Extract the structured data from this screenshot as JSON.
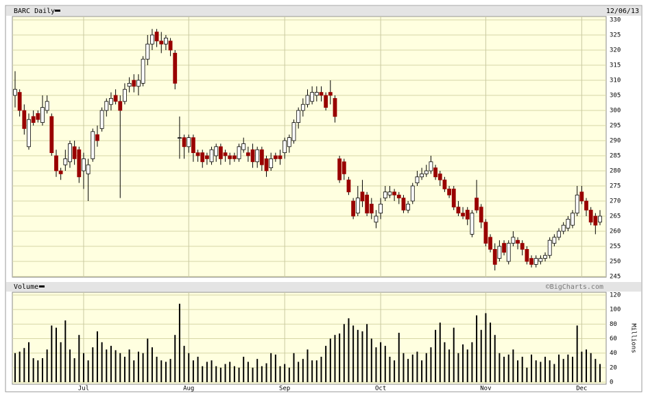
{
  "chart_data": [
    {
      "type": "candlestick",
      "title": "BARC Daily",
      "date": "12/06/13",
      "ylim": [
        245,
        330
      ],
      "yticks": [
        245,
        250,
        255,
        260,
        265,
        270,
        275,
        280,
        285,
        290,
        295,
        300,
        305,
        310,
        315,
        320,
        325,
        330
      ],
      "grid": true,
      "up_color": "#ffffff",
      "down_color": "#990000",
      "open": [
        305,
        306,
        300,
        288,
        298,
        299,
        296,
        300,
        298,
        285,
        280,
        282,
        283,
        288,
        287,
        280,
        279,
        284,
        292,
        294,
        300,
        302,
        305,
        303,
        303,
        308,
        310,
        308,
        309,
        317,
        322,
        326,
        323,
        322,
        323,
        319,
        291,
        291,
        288,
        291,
        286,
        286,
        285,
        283,
        285,
        288,
        286,
        285,
        285,
        284,
        287,
        286,
        287,
        283,
        287,
        284,
        281,
        285,
        285,
        286,
        288,
        290,
        296,
        300,
        302,
        303,
        305,
        306,
        305,
        306,
        304,
        284,
        283,
        277,
        270,
        266,
        273,
        272,
        269,
        263,
        266,
        271,
        272,
        273,
        272,
        271,
        267,
        270,
        276,
        278,
        279,
        280,
        281,
        279,
        277,
        274,
        274,
        268,
        266,
        267,
        259,
        271,
        268,
        263,
        258,
        254,
        251,
        256,
        250,
        256,
        257,
        256,
        254,
        251,
        249,
        250,
        251,
        252,
        256,
        258,
        260,
        261,
        262,
        266,
        273,
        270,
        267,
        265,
        263
      ],
      "high": [
        313,
        307,
        302,
        299,
        300,
        300,
        305,
        305,
        299,
        287,
        281,
        287,
        290,
        290,
        288,
        286,
        284,
        294,
        295,
        301,
        304,
        306,
        307,
        305,
        309,
        311,
        312,
        312,
        318,
        325,
        327,
        327,
        326,
        325,
        324,
        320,
        298,
        292,
        292,
        292,
        287,
        287,
        286,
        288,
        289,
        289,
        287,
        286,
        286,
        289,
        291,
        288,
        289,
        288,
        288,
        285,
        286,
        286,
        287,
        291,
        292,
        297,
        301,
        304,
        307,
        308,
        308,
        308,
        306,
        310,
        305,
        285,
        284,
        278,
        271,
        275,
        277,
        273,
        271,
        267,
        271,
        275,
        275,
        274,
        273,
        272,
        270,
        276,
        280,
        281,
        282,
        285,
        282,
        280,
        278,
        275,
        275,
        270,
        268,
        268,
        267,
        277,
        269,
        264,
        259,
        256,
        257,
        257,
        257,
        260,
        258,
        257,
        255,
        252,
        252,
        252,
        253,
        258,
        259,
        261,
        263,
        265,
        267,
        275,
        275,
        271,
        268,
        266,
        267
      ],
      "low": [
        301,
        298,
        292,
        287,
        295,
        296,
        295,
        299,
        285,
        278,
        277,
        280,
        281,
        282,
        276,
        274,
        270,
        283,
        288,
        293,
        298,
        300,
        302,
        271,
        302,
        306,
        306,
        305,
        308,
        315,
        320,
        321,
        319,
        320,
        318,
        307,
        284,
        284,
        286,
        283,
        283,
        281,
        282,
        282,
        283,
        282,
        283,
        282,
        283,
        283,
        286,
        283,
        281,
        281,
        280,
        278,
        280,
        283,
        282,
        284,
        286,
        289,
        294,
        298,
        301,
        302,
        303,
        303,
        300,
        302,
        296,
        276,
        277,
        272,
        264,
        265,
        268,
        265,
        264,
        261,
        264,
        270,
        271,
        270,
        269,
        266,
        266,
        269,
        275,
        277,
        278,
        279,
        277,
        275,
        273,
        271,
        267,
        265,
        264,
        262,
        258,
        266,
        261,
        255,
        253,
        247,
        250,
        252,
        249,
        255,
        254,
        252,
        249,
        248,
        248,
        249,
        250,
        251,
        255,
        257,
        259,
        260,
        261,
        265,
        269,
        265,
        262,
        259,
        262
      ],
      "close": [
        307,
        300,
        294,
        297,
        296,
        297,
        301,
        303,
        286,
        280,
        279,
        284,
        289,
        284,
        278,
        284,
        282,
        293,
        290,
        300,
        303,
        304,
        303,
        300,
        307,
        309,
        308,
        310,
        317,
        322,
        325,
        323,
        322,
        324,
        320,
        309,
        291,
        288,
        291,
        286,
        285,
        283,
        284,
        287,
        288,
        284,
        285,
        284,
        284,
        288,
        289,
        285,
        283,
        287,
        282,
        280,
        284,
        284,
        284,
        290,
        291,
        296,
        300,
        302,
        305,
        306,
        306,
        305,
        301,
        305,
        298,
        277,
        279,
        273,
        265,
        271,
        270,
        266,
        266,
        265,
        269,
        273,
        273,
        272,
        271,
        267,
        269,
        275,
        278,
        279,
        280,
        283,
        278,
        277,
        274,
        272,
        268,
        266,
        265,
        264,
        266,
        267,
        263,
        256,
        254,
        249,
        255,
        253,
        256,
        258,
        256,
        254,
        250,
        249,
        251,
        251,
        252,
        257,
        258,
        260,
        262,
        264,
        266,
        272,
        270,
        267,
        263,
        262,
        265
      ]
    },
    {
      "type": "bar",
      "title": "Volume",
      "y_label": "Millions",
      "source": "©BigCharts.com",
      "color": "#000000",
      "ylim": [
        0,
        120
      ],
      "yticks": [
        0,
        20,
        40,
        60,
        80,
        100,
        120
      ],
      "grid": true,
      "categories": [
        null,
        null,
        null,
        null,
        null,
        null,
        null,
        null,
        null,
        null,
        null,
        null,
        null,
        null,
        null,
        "Jul",
        null,
        null,
        null,
        null,
        null,
        null,
        null,
        null,
        null,
        null,
        null,
        null,
        null,
        null,
        null,
        null,
        null,
        null,
        null,
        null,
        null,
        null,
        "Aug",
        null,
        null,
        null,
        null,
        null,
        null,
        null,
        null,
        null,
        null,
        null,
        null,
        null,
        null,
        null,
        null,
        null,
        null,
        null,
        null,
        "Sep",
        null,
        null,
        null,
        null,
        null,
        null,
        null,
        null,
        null,
        null,
        null,
        null,
        null,
        null,
        null,
        null,
        null,
        null,
        null,
        null,
        "Oct",
        null,
        null,
        null,
        null,
        null,
        null,
        null,
        null,
        null,
        null,
        null,
        null,
        null,
        null,
        null,
        null,
        null,
        null,
        null,
        null,
        null,
        null,
        "Nov",
        null,
        null,
        null,
        null,
        null,
        null,
        null,
        null,
        null,
        null,
        null,
        null,
        null,
        null,
        null,
        null,
        null,
        null,
        null,
        null,
        "Dec",
        null,
        null,
        null,
        null
      ],
      "values": [
        40,
        42,
        47,
        55,
        33,
        30,
        33,
        45,
        78,
        75,
        55,
        85,
        45,
        33,
        65,
        40,
        30,
        48,
        70,
        55,
        45,
        50,
        44,
        40,
        35,
        45,
        30,
        42,
        40,
        60,
        48,
        35,
        30,
        28,
        32,
        65,
        108,
        50,
        40,
        30,
        35,
        22,
        28,
        30,
        22,
        20,
        25,
        28,
        22,
        20,
        35,
        28,
        20,
        32,
        22,
        26,
        40,
        38,
        22,
        25,
        20,
        40,
        28,
        32,
        45,
        30,
        30,
        35,
        50,
        60,
        65,
        67,
        80,
        88,
        78,
        72,
        70,
        80,
        60,
        48,
        55,
        50,
        35,
        30,
        68,
        40,
        32,
        38,
        42,
        30,
        40,
        48,
        72,
        82,
        55,
        45,
        75,
        40,
        52,
        45,
        55,
        92,
        72,
        95,
        82,
        65,
        40,
        35,
        38,
        45,
        30,
        35,
        20,
        38,
        30,
        28,
        35,
        30,
        25,
        38,
        32,
        38,
        35,
        78,
        42,
        45,
        40,
        32,
        25
      ]
    }
  ]
}
